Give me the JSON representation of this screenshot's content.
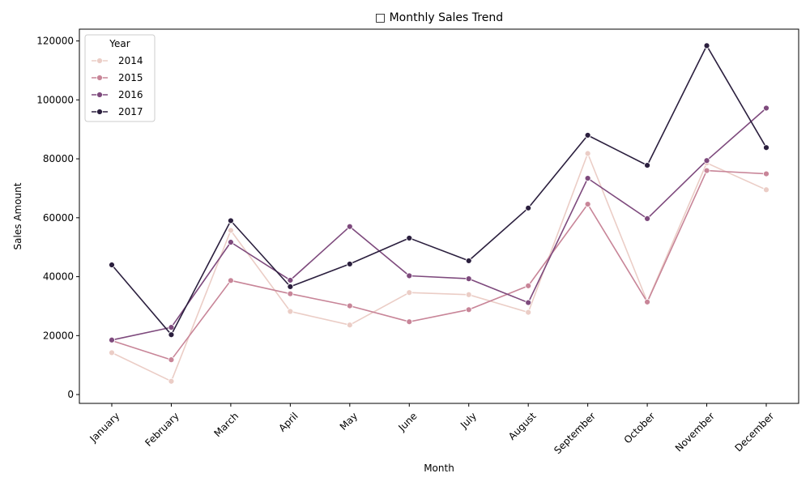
{
  "chart_data": {
    "type": "line",
    "title": "□ Monthly Sales Trend",
    "xlabel": "Month",
    "ylabel": "Sales Amount",
    "categories": [
      "January",
      "February",
      "March",
      "April",
      "May",
      "June",
      "July",
      "August",
      "September",
      "October",
      "November",
      "December"
    ],
    "ylim": [
      -3000,
      124000
    ],
    "yticks": [
      0,
      20000,
      40000,
      60000,
      80000,
      100000,
      120000
    ],
    "grid": false,
    "legend": {
      "title": "Year",
      "placement": "top-left"
    },
    "series": [
      {
        "name": "2014",
        "color": "#ebcdc6",
        "values": [
          14200,
          4500,
          55700,
          28200,
          23600,
          34600,
          33900,
          27900,
          81800,
          31500,
          78600,
          69500
        ]
      },
      {
        "name": "2015",
        "color": "#c88598",
        "values": [
          18300,
          11800,
          38700,
          34200,
          30100,
          24700,
          28800,
          36900,
          64600,
          31400,
          76000,
          74900
        ]
      },
      {
        "name": "2016",
        "color": "#7e4a7d",
        "values": [
          18500,
          22800,
          51700,
          38800,
          57000,
          40300,
          39300,
          31200,
          73400,
          59700,
          79400,
          97200
        ]
      },
      {
        "name": "2017",
        "color": "#2b1f3e",
        "values": [
          44000,
          20300,
          59000,
          36600,
          44300,
          53100,
          45400,
          63300,
          88000,
          77800,
          118400,
          83800
        ]
      }
    ]
  }
}
